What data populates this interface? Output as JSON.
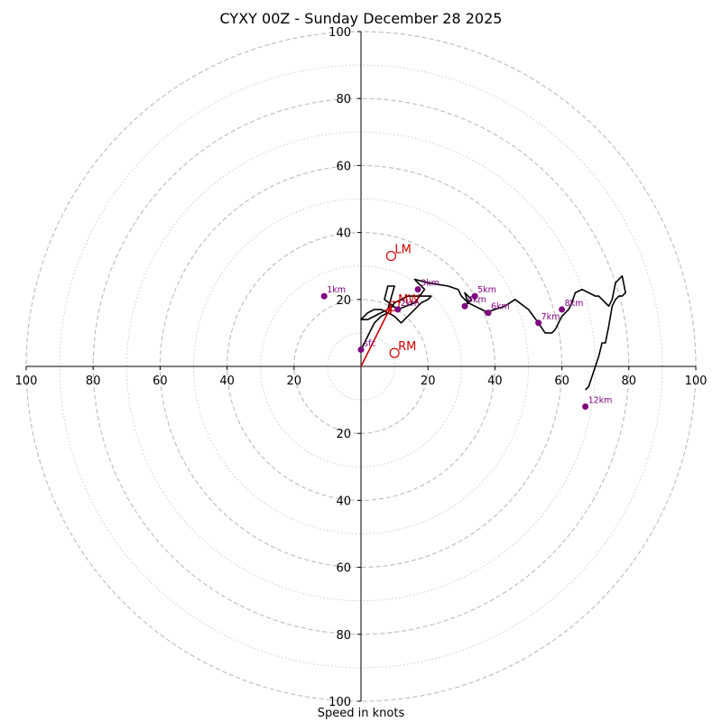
{
  "chart_data": {
    "type": "hodograph",
    "title": "CYXY 00Z - Sunday December 28 2025",
    "xlabel": "Speed in knots",
    "range": [
      -100,
      100
    ],
    "ring_major": [
      20,
      40,
      60,
      80,
      100
    ],
    "ring_minor": [
      10,
      30,
      50,
      70,
      90
    ],
    "axis_ticks": [
      20,
      40,
      60,
      80,
      100
    ],
    "colors": {
      "trace": "#000000",
      "height_marker": "#800080",
      "motion": "#cc0000",
      "grid": "#bbbbbb",
      "grid_minor": "#cccccc"
    },
    "trace": {
      "u": [
        0,
        2,
        4,
        6,
        8,
        10,
        12,
        14,
        16,
        18,
        21,
        21,
        20,
        18,
        16,
        14,
        12,
        10,
        8,
        6,
        4,
        2,
        0,
        2,
        4,
        6,
        8,
        10,
        8,
        7,
        11,
        16,
        19,
        17,
        16,
        20,
        26,
        29,
        30,
        32,
        31,
        33,
        31,
        32,
        34,
        36,
        38,
        37,
        40,
        43,
        46,
        50,
        53,
        55,
        57,
        58,
        59,
        60,
        62,
        63,
        64,
        66,
        68,
        70,
        71,
        72,
        73,
        74,
        75,
        76,
        78,
        79,
        78,
        77,
        76,
        75,
        74,
        73,
        72,
        71,
        70,
        69,
        68,
        67
      ],
      "v": [
        5,
        9,
        13,
        15,
        16,
        19,
        20,
        21,
        21,
        21,
        21,
        21,
        20,
        19,
        17,
        15,
        13,
        15,
        16,
        17,
        17,
        16,
        14,
        14,
        15,
        16,
        17,
        24,
        24,
        20,
        17,
        19,
        23,
        25,
        26,
        25,
        24,
        23,
        21,
        19,
        18,
        20,
        22,
        19,
        18,
        17,
        16,
        16,
        17,
        18,
        20,
        17,
        13,
        10,
        10,
        11,
        13,
        15,
        17,
        19,
        22,
        23,
        22,
        21,
        21,
        20,
        19,
        18,
        20,
        25,
        27,
        22,
        21,
        21,
        20,
        18,
        12,
        7,
        7,
        3,
        0,
        -3,
        -6,
        -7
      ]
    },
    "height_markers": [
      {
        "label": "1km",
        "u": -11,
        "v": 21
      },
      {
        "label": "2km",
        "u": 11,
        "v": 17
      },
      {
        "label": "3km",
        "u": 17,
        "v": 23
      },
      {
        "label": "4km",
        "u": 31,
        "v": 18
      },
      {
        "label": "5km",
        "u": 34,
        "v": 21
      },
      {
        "label": "6km",
        "u": 38,
        "v": 16
      },
      {
        "label": "7km",
        "u": 53,
        "v": 13
      },
      {
        "label": "8km",
        "u": 60,
        "v": 17
      },
      {
        "label": "12km",
        "u": 67,
        "v": -12
      },
      {
        "label": "sfc",
        "u": 0,
        "v": 5
      }
    ],
    "storm_motion": [
      {
        "label": "LM",
        "u": 9,
        "v": 33,
        "marker": "circle"
      },
      {
        "label": "MW",
        "u": 10,
        "v": 18,
        "marker": "square"
      },
      {
        "label": "RM",
        "u": 10,
        "v": 4,
        "marker": "circle"
      }
    ],
    "shear_vector": {
      "from": [
        0,
        0
      ],
      "to": [
        9,
        18
      ]
    }
  }
}
